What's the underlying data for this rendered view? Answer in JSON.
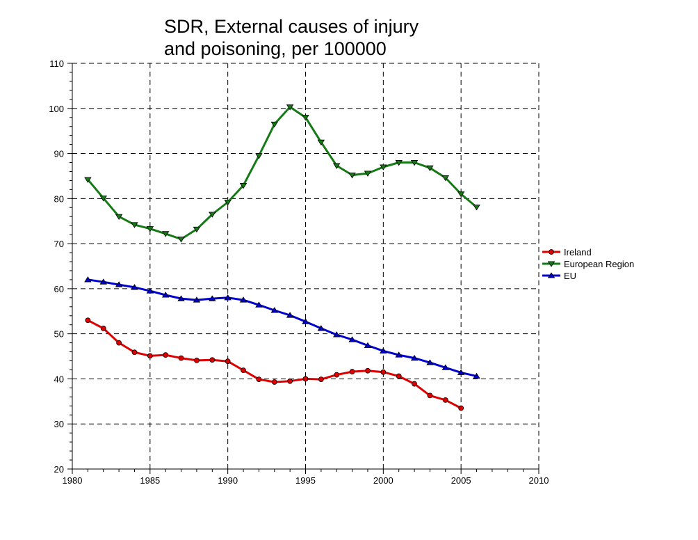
{
  "chart_data": {
    "type": "line",
    "title_lines": [
      "SDR, External causes of injury",
      "and poisoning, per 100000"
    ],
    "xlabel": "",
    "ylabel": "",
    "xlim": [
      1980,
      2010
    ],
    "ylim": [
      20,
      110
    ],
    "x_ticks": [
      1980,
      1985,
      1990,
      1995,
      2000,
      2005,
      2010
    ],
    "y_ticks": [
      20,
      30,
      40,
      50,
      60,
      70,
      80,
      90,
      100,
      110
    ],
    "grid": true,
    "legend_position": "right",
    "series": [
      {
        "name": "Ireland",
        "color": "#dd0000",
        "marker": "circle",
        "x": [
          1981,
          1982,
          1983,
          1984,
          1985,
          1986,
          1987,
          1988,
          1989,
          1990,
          1991,
          1992,
          1993,
          1994,
          1995,
          1996,
          1997,
          1998,
          1999,
          2000,
          2001,
          2002,
          2003,
          2004,
          2005
        ],
        "values": [
          53.0,
          51.2,
          48.0,
          45.9,
          45.1,
          45.3,
          44.6,
          44.1,
          44.2,
          43.9,
          41.9,
          39.9,
          39.3,
          39.5,
          40.0,
          39.9,
          40.9,
          41.6,
          41.8,
          41.5,
          40.6,
          38.9,
          36.3,
          35.3,
          33.5
        ]
      },
      {
        "name": "European Region",
        "color": "#157a15",
        "marker": "triangle-down",
        "x": [
          1981,
          1982,
          1983,
          1984,
          1985,
          1986,
          1987,
          1988,
          1989,
          1990,
          1991,
          1992,
          1993,
          1994,
          1995,
          1996,
          1997,
          1998,
          1999,
          2000,
          2001,
          2002,
          2003,
          2004,
          2005,
          2006
        ],
        "values": [
          84.2,
          80.1,
          76.0,
          74.2,
          73.3,
          72.2,
          71.0,
          73.2,
          76.5,
          79.2,
          82.9,
          89.5,
          96.5,
          100.3,
          98.0,
          92.5,
          87.3,
          85.2,
          85.6,
          87.0,
          88.0,
          88.0,
          86.8,
          84.6,
          81.0,
          78.1
        ]
      },
      {
        "name": "EU",
        "color": "#0000cc",
        "marker": "triangle-up",
        "x": [
          1981,
          1982,
          1983,
          1984,
          1985,
          1986,
          1987,
          1988,
          1989,
          1990,
          1991,
          1992,
          1993,
          1994,
          1995,
          1996,
          1997,
          1998,
          1999,
          2000,
          2001,
          2002,
          2003,
          2004,
          2005,
          2006
        ],
        "values": [
          62.0,
          61.5,
          60.9,
          60.3,
          59.5,
          58.6,
          57.8,
          57.5,
          57.8,
          58.0,
          57.5,
          56.4,
          55.2,
          54.1,
          52.7,
          51.2,
          49.8,
          48.7,
          47.4,
          46.2,
          45.3,
          44.6,
          43.6,
          42.5,
          41.4,
          40.6
        ]
      }
    ]
  }
}
